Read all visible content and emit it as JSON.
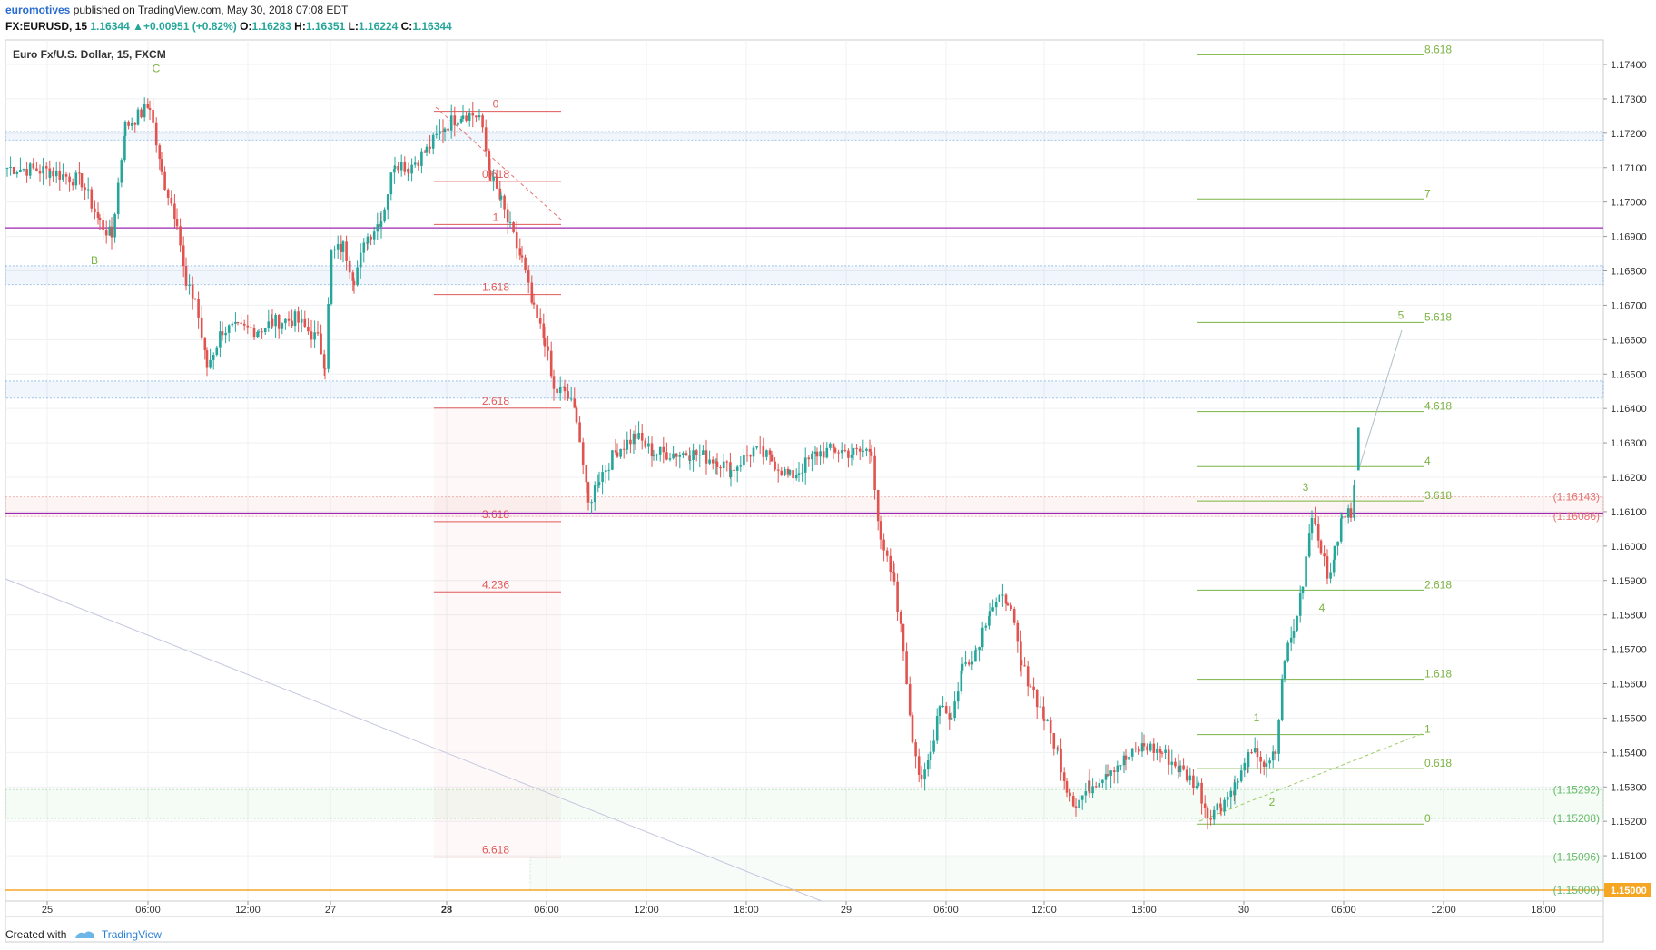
{
  "header": {
    "author": "euromotives",
    "published_text": "published on TradingView.com, May 30, 2018 07:08 EDT",
    "symbol": "FX:EURUSD, 15",
    "last": "1.16344",
    "change": "+0.00951 (+0.82%)",
    "o_label": "O:",
    "o": "1.16283",
    "h_label": "H:",
    "h": "1.16351",
    "l_label": "L:",
    "l": "1.16224",
    "c_label": "C:",
    "c": "1.16344"
  },
  "footer": {
    "created_with": "Created with",
    "brand": "TradingView"
  },
  "chart_data": {
    "type": "candlestick",
    "title": "Euro Fx/U.S. Dollar, 15, FXCM",
    "ylim": [
      1.1499,
      1.1755
    ],
    "y_ticks": [
      "1.17400",
      "1.17300",
      "1.17200",
      "1.17100",
      "1.17000",
      "1.16900",
      "1.16800",
      "1.16700",
      "1.16600",
      "1.16500",
      "1.16400",
      "1.16300",
      "1.16200",
      "1.16100",
      "1.16000",
      "1.15900",
      "1.15800",
      "1.15700",
      "1.15600",
      "1.15500",
      "1.15400",
      "1.15300",
      "1.15200",
      "1.15100",
      "1.15000"
    ],
    "x_ticks": [
      "25",
      "06:00",
      "12:00",
      "27",
      "28",
      "06:00",
      "12:00",
      "18:00",
      "29",
      "06:00",
      "12:00",
      "18:00",
      "30",
      "06:00",
      "12:00",
      "18:00"
    ],
    "x_tick_bold": [
      "28"
    ],
    "horizontal_lines": [
      {
        "price": 1.16925,
        "color": "#9c27b0"
      },
      {
        "price": 1.16096,
        "color": "#9c27b0"
      },
      {
        "price": 1.15,
        "color": "#f5a623",
        "label": "1.15000"
      }
    ],
    "zones": [
      {
        "from": 1.1718,
        "to": 1.17205,
        "color": "#4a90d9"
      },
      {
        "from": 1.1676,
        "to": 1.16815,
        "color": "#4a90d9"
      },
      {
        "from": 1.1643,
        "to": 1.1648,
        "color": "#4a90d9"
      },
      {
        "from": 1.16086,
        "to": 1.16143,
        "color": "#e57373"
      },
      {
        "from": 1.15208,
        "to": 1.15292,
        "color": "#81c784"
      }
    ],
    "price_labels": [
      {
        "price": 1.16143,
        "text": "(1.16143)",
        "color": "#e57373"
      },
      {
        "price": 1.16086,
        "text": "(1.16086)",
        "color": "#e57373"
      },
      {
        "price": 1.15292,
        "text": "(1.15292)",
        "color": "#66bb6a"
      },
      {
        "price": 1.15208,
        "text": "(1.15208)",
        "color": "#66bb6a"
      },
      {
        "price": 1.15096,
        "text": "(1.15096)",
        "color": "#66bb6a"
      },
      {
        "price": 1.15,
        "text": "(1.15000)",
        "color": "#66bb6a"
      }
    ],
    "fib_down": {
      "color": "#e05a5a",
      "levels": [
        {
          "label": "0",
          "price": 1.17264
        },
        {
          "label": "0.618",
          "price": 1.1706
        },
        {
          "label": "1",
          "price": 1.16935
        },
        {
          "label": "1.618",
          "price": 1.16731
        },
        {
          "label": "2.618",
          "price": 1.16401
        },
        {
          "label": "3.618",
          "price": 1.16071
        },
        {
          "label": "4.236",
          "price": 1.15867
        },
        {
          "label": "6.618",
          "price": 1.15096
        }
      ]
    },
    "fib_up": {
      "color": "#7cb342",
      "levels": [
        {
          "label": "0",
          "price": 1.15192
        },
        {
          "label": "0.618",
          "price": 1.15353
        },
        {
          "label": "1",
          "price": 1.15452
        },
        {
          "label": "1.618",
          "price": 1.15613
        },
        {
          "label": "2.618",
          "price": 1.15872
        },
        {
          "label": "3.618",
          "price": 1.16131
        },
        {
          "label": "4",
          "price": 1.16231
        },
        {
          "label": "4.618",
          "price": 1.16391
        },
        {
          "label": "5.618",
          "price": 1.1665
        },
        {
          "label": "7",
          "price": 1.17009
        },
        {
          "label": "8.618",
          "price": 1.17428
        }
      ]
    },
    "wave_labels": [
      {
        "text": "C",
        "price": 1.17378,
        "color": "#7cb342"
      },
      {
        "text": "B",
        "price": 1.1682,
        "color": "#7cb342"
      },
      {
        "text": "1",
        "price": 1.1549,
        "color": "#7cb342"
      },
      {
        "text": "2",
        "price": 1.15245,
        "color": "#7cb342"
      },
      {
        "text": "3",
        "price": 1.1616,
        "color": "#7cb342"
      },
      {
        "text": "4",
        "price": 1.1581,
        "color": "#7cb342"
      },
      {
        "text": "5",
        "price": 1.1666,
        "color": "#7cb342"
      }
    ],
    "last_price": "1.16344",
    "colors": {
      "up": "#26a69a",
      "down": "#e0534f",
      "grid": "#eef0f3",
      "axis_text": "#333333"
    }
  }
}
